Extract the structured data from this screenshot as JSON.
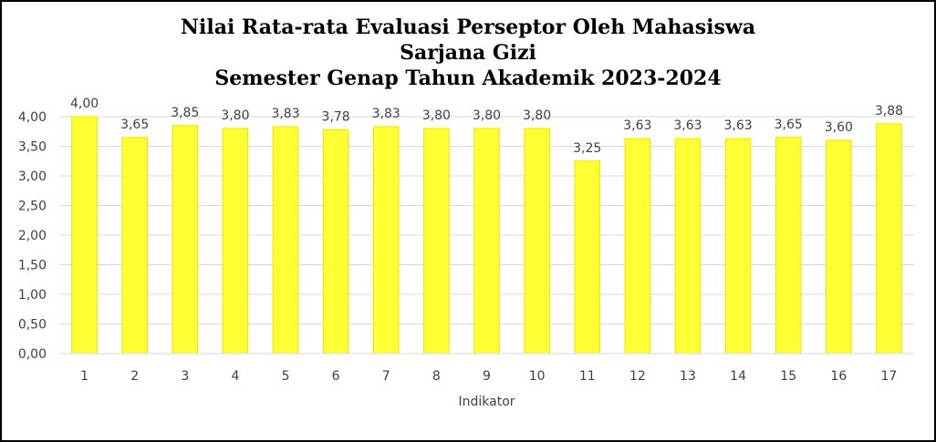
{
  "chart_data": {
    "type": "bar",
    "title_lines": [
      "Nilai Rata-rata  Evaluasi Perseptor Oleh Mahasiswa",
      "Sarjana  Gizi",
      "Semester Genap Tahun Akademik 2023-2024"
    ],
    "xlabel": "Indikator",
    "ylabel": "",
    "categories": [
      "1",
      "2",
      "3",
      "4",
      "5",
      "6",
      "7",
      "8",
      "9",
      "10",
      "11",
      "12",
      "13",
      "14",
      "15",
      "16",
      "17"
    ],
    "values": [
      4.0,
      3.65,
      3.85,
      3.8,
      3.83,
      3.78,
      3.83,
      3.8,
      3.8,
      3.8,
      3.25,
      3.63,
      3.63,
      3.63,
      3.65,
      3.6,
      3.88
    ],
    "data_labels": [
      "4,00",
      "3,65",
      "3,85",
      "3,80",
      "3,83",
      "3,78",
      "3,83",
      "3,80",
      "3,80",
      "3,80",
      "3,25",
      "3,63",
      "3,63",
      "3,63",
      "3,65",
      "3,60",
      "3,88"
    ],
    "y_ticks": [
      "0,00",
      "0,50",
      "1,00",
      "1,50",
      "2,00",
      "2,50",
      "3,00",
      "3,50",
      "4,00"
    ],
    "ylim": [
      0,
      4
    ],
    "grid": true,
    "legend": "none",
    "colors": {
      "bar": "#FFFF33",
      "bar_edge": "#E6E600",
      "grid": "#D9D9D9",
      "text": "#404040"
    }
  }
}
